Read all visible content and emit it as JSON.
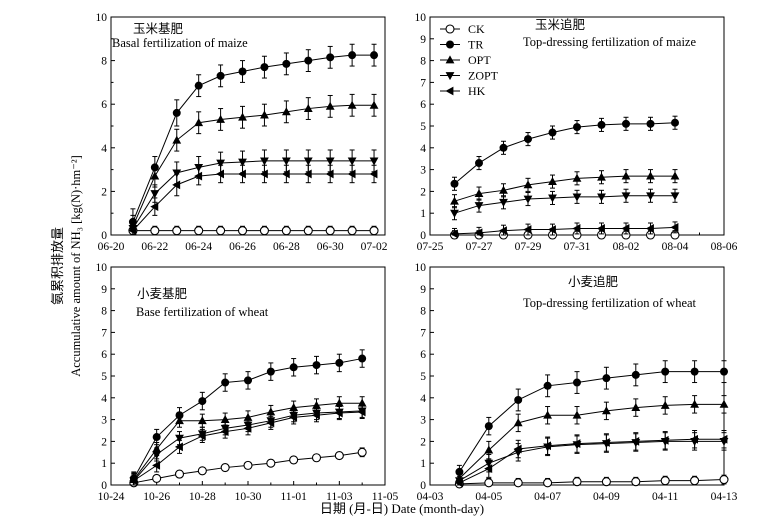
{
  "figure": {
    "ylabel_cn": "氨累积排放量",
    "ylabel_en": "Accumulative amount of NH₃ [kg(N)·hm⁻²]",
    "xlabel": "日期 (月-日) Date (month-day)"
  },
  "legend": {
    "panel": 1,
    "entries": [
      {
        "name": "CK",
        "marker": "circle-open"
      },
      {
        "name": "TR",
        "marker": "circle-filled"
      },
      {
        "name": "OPT",
        "marker": "triangle-up"
      },
      {
        "name": "ZOPT",
        "marker": "triangle-down"
      },
      {
        "name": "HK",
        "marker": "triangle-left"
      }
    ]
  },
  "chart_data": [
    {
      "type": "line",
      "title_cn": "玉米基肥",
      "title_en": "Basal fertilization of maize",
      "xlim": [
        0,
        12.5
      ],
      "xticks": [
        0,
        2,
        4,
        6,
        8,
        10,
        12
      ],
      "xtick_labels": [
        "06-20",
        "06-22",
        "06-24",
        "06-26",
        "06-28",
        "06-30",
        "07-02"
      ],
      "ylim": [
        0,
        10
      ],
      "yticks": [
        0,
        2,
        4,
        6,
        8,
        10
      ],
      "x": [
        1,
        2,
        3,
        4,
        5,
        6,
        7,
        8,
        9,
        10,
        11,
        12
      ],
      "series": [
        {
          "name": "CK",
          "values": [
            0.2,
            0.2,
            0.2,
            0.2,
            0.2,
            0.2,
            0.2,
            0.2,
            0.2,
            0.2,
            0.2,
            0.2
          ],
          "err": [
            0.2,
            0.2,
            0.2,
            0.2,
            0.2,
            0.2,
            0.2,
            0.2,
            0.2,
            0.2,
            0.2,
            0.2
          ]
        },
        {
          "name": "TR",
          "values": [
            0.6,
            3.1,
            5.6,
            6.85,
            7.3,
            7.5,
            7.7,
            7.85,
            8.0,
            8.15,
            8.25,
            8.25
          ],
          "err": [
            0.6,
            0.5,
            0.6,
            0.5,
            0.5,
            0.5,
            0.5,
            0.5,
            0.5,
            0.5,
            0.5,
            0.5
          ]
        },
        {
          "name": "OPT",
          "values": [
            0.4,
            2.7,
            4.35,
            5.15,
            5.3,
            5.4,
            5.5,
            5.65,
            5.8,
            5.9,
            5.95,
            5.95
          ],
          "err": [
            0.5,
            0.5,
            0.5,
            0.5,
            0.5,
            0.5,
            0.5,
            0.5,
            0.5,
            0.5,
            0.5,
            0.5
          ]
        },
        {
          "name": "ZOPT",
          "values": [
            0.3,
            1.9,
            2.85,
            3.1,
            3.3,
            3.35,
            3.4,
            3.4,
            3.4,
            3.4,
            3.4,
            3.4
          ],
          "err": [
            0.4,
            0.4,
            0.5,
            0.5,
            0.5,
            0.5,
            0.5,
            0.5,
            0.5,
            0.5,
            0.5,
            0.5
          ]
        },
        {
          "name": "HK",
          "values": [
            0.2,
            1.3,
            2.3,
            2.7,
            2.8,
            2.8,
            2.8,
            2.8,
            2.8,
            2.8,
            2.8,
            2.8
          ],
          "err": [
            0.3,
            0.4,
            0.5,
            0.4,
            0.4,
            0.4,
            0.4,
            0.4,
            0.4,
            0.4,
            0.4,
            0.4
          ]
        }
      ]
    },
    {
      "type": "line",
      "title_cn": "玉米追肥",
      "title_en": "Top-dressing fertilization of maize",
      "xlim": [
        0,
        12
      ],
      "xticks": [
        0,
        2,
        4,
        6,
        8,
        10,
        12
      ],
      "xtick_labels": [
        "07-25",
        "07-27",
        "07-29",
        "07-31",
        "08-02",
        "08-04",
        "08-06"
      ],
      "ylim": [
        0,
        10
      ],
      "yticks": [
        0,
        1,
        2,
        3,
        4,
        5,
        6,
        7,
        8,
        9,
        10
      ],
      "x": [
        1,
        2,
        3,
        4,
        5,
        6,
        7,
        8,
        9,
        10
      ],
      "series": [
        {
          "name": "CK",
          "values": [
            0,
            0,
            0,
            0,
            0,
            0,
            0,
            0,
            0,
            0
          ],
          "err": [
            0.2,
            0.2,
            0.2,
            0.2,
            0.2,
            0.2,
            0.2,
            0.2,
            0.2,
            0.2
          ]
        },
        {
          "name": "TR",
          "values": [
            2.35,
            3.3,
            4.0,
            4.4,
            4.7,
            4.95,
            5.05,
            5.1,
            5.1,
            5.15
          ],
          "err": [
            0.3,
            0.3,
            0.3,
            0.3,
            0.3,
            0.3,
            0.3,
            0.3,
            0.3,
            0.3
          ]
        },
        {
          "name": "OPT",
          "values": [
            1.55,
            1.9,
            2.05,
            2.3,
            2.45,
            2.6,
            2.65,
            2.7,
            2.7,
            2.7
          ],
          "err": [
            0.3,
            0.3,
            0.3,
            0.3,
            0.3,
            0.3,
            0.3,
            0.3,
            0.3,
            0.3
          ]
        },
        {
          "name": "ZOPT",
          "values": [
            1.0,
            1.35,
            1.5,
            1.65,
            1.7,
            1.75,
            1.75,
            1.8,
            1.8,
            1.8
          ],
          "err": [
            0.3,
            0.3,
            0.3,
            0.3,
            0.3,
            0.3,
            0.3,
            0.3,
            0.3,
            0.3
          ]
        },
        {
          "name": "HK",
          "values": [
            0.05,
            0.1,
            0.2,
            0.25,
            0.25,
            0.3,
            0.3,
            0.3,
            0.3,
            0.35
          ],
          "err": [
            0.25,
            0.25,
            0.25,
            0.25,
            0.25,
            0.25,
            0.25,
            0.25,
            0.25,
            0.25
          ]
        }
      ]
    },
    {
      "type": "line",
      "title_cn": "小麦基肥",
      "title_en": "Base fertilization of wheat",
      "xlim": [
        0,
        12
      ],
      "xticks": [
        0,
        2,
        4,
        6,
        8,
        10,
        12
      ],
      "xtick_labels": [
        "10-24",
        "10-26",
        "10-28",
        "10-30",
        "11-01",
        "11-03",
        "11-05"
      ],
      "ylim": [
        0,
        10
      ],
      "yticks": [
        0,
        1,
        2,
        3,
        4,
        5,
        6,
        7,
        8,
        9,
        10
      ],
      "x": [
        1,
        2,
        3,
        4,
        5,
        6,
        7,
        8,
        9,
        10,
        11
      ],
      "series": [
        {
          "name": "CK",
          "values": [
            0.1,
            0.3,
            0.5,
            0.65,
            0.8,
            0.9,
            1.0,
            1.15,
            1.25,
            1.35,
            1.5
          ],
          "err": [
            0.15,
            0.15,
            0.15,
            0.15,
            0.15,
            0.15,
            0.15,
            0.15,
            0.15,
            0.15,
            0.2
          ]
        },
        {
          "name": "TR",
          "values": [
            0.3,
            2.2,
            3.2,
            3.85,
            4.7,
            4.8,
            5.2,
            5.4,
            5.5,
            5.6,
            5.8
          ],
          "err": [
            0.3,
            0.35,
            0.35,
            0.4,
            0.4,
            0.4,
            0.4,
            0.4,
            0.4,
            0.4,
            0.4
          ]
        },
        {
          "name": "OPT",
          "values": [
            0.25,
            1.65,
            2.95,
            2.95,
            3.0,
            3.1,
            3.35,
            3.55,
            3.65,
            3.75,
            3.75
          ],
          "err": [
            0.3,
            0.3,
            0.3,
            0.3,
            0.3,
            0.3,
            0.3,
            0.3,
            0.3,
            0.3,
            0.3
          ]
        },
        {
          "name": "ZOPT",
          "values": [
            0.2,
            1.4,
            2.15,
            2.35,
            2.6,
            2.75,
            2.95,
            3.2,
            3.3,
            3.35,
            3.4
          ],
          "err": [
            0.3,
            0.3,
            0.3,
            0.3,
            0.3,
            0.3,
            0.3,
            0.3,
            0.3,
            0.3,
            0.3
          ]
        },
        {
          "name": "HK",
          "values": [
            0.2,
            0.9,
            1.75,
            2.25,
            2.45,
            2.6,
            2.85,
            3.1,
            3.2,
            3.3,
            3.35
          ],
          "err": [
            0.3,
            0.3,
            0.3,
            0.3,
            0.3,
            0.3,
            0.3,
            0.3,
            0.3,
            0.3,
            0.3
          ]
        }
      ]
    },
    {
      "type": "line",
      "title_cn": "小麦追肥",
      "title_en": "Top-dressing fertilization of wheat",
      "xlim": [
        0,
        10
      ],
      "xticks": [
        0,
        2,
        4,
        6,
        8,
        10
      ],
      "xtick_labels": [
        "04-03",
        "04-05",
        "04-07",
        "04-09",
        "04-11",
        "04-13"
      ],
      "ylim": [
        0,
        10
      ],
      "yticks": [
        0,
        1,
        2,
        3,
        4,
        5,
        6,
        7,
        8,
        9,
        10
      ],
      "x": [
        1,
        2,
        3,
        4,
        5,
        6,
        7,
        8,
        9,
        10
      ],
      "series": [
        {
          "name": "CK",
          "values": [
            0.05,
            0.1,
            0.1,
            0.1,
            0.15,
            0.15,
            0.15,
            0.2,
            0.2,
            0.25
          ],
          "err": [
            0.2,
            0.2,
            0.2,
            0.2,
            0.2,
            0.2,
            0.2,
            0.2,
            0.2,
            0.2
          ]
        },
        {
          "name": "TR",
          "values": [
            0.6,
            2.7,
            3.9,
            4.55,
            4.7,
            4.9,
            5.05,
            5.2,
            5.2,
            5.2
          ],
          "err": [
            0.3,
            0.4,
            0.5,
            0.5,
            0.5,
            0.5,
            0.5,
            0.5,
            0.5,
            0.5
          ]
        },
        {
          "name": "OPT",
          "values": [
            0.3,
            1.6,
            2.85,
            3.2,
            3.2,
            3.4,
            3.55,
            3.65,
            3.7,
            3.7
          ],
          "err": [
            0.3,
            0.4,
            0.4,
            0.4,
            0.4,
            0.4,
            0.4,
            0.4,
            0.4,
            0.4
          ]
        },
        {
          "name": "ZOPT",
          "values": [
            0.2,
            1.0,
            1.5,
            1.75,
            1.85,
            1.9,
            1.95,
            2.0,
            2.0,
            2.0
          ],
          "err": [
            0.3,
            0.4,
            0.4,
            0.4,
            0.4,
            0.4,
            0.4,
            0.4,
            0.4,
            0.4
          ]
        },
        {
          "name": "HK",
          "values": [
            0.1,
            0.75,
            1.65,
            1.8,
            1.9,
            1.95,
            2.0,
            2.05,
            2.1,
            2.1
          ],
          "err": [
            0.3,
            0.4,
            0.4,
            0.4,
            0.4,
            0.4,
            0.4,
            0.4,
            0.4,
            0.4
          ]
        }
      ]
    }
  ]
}
